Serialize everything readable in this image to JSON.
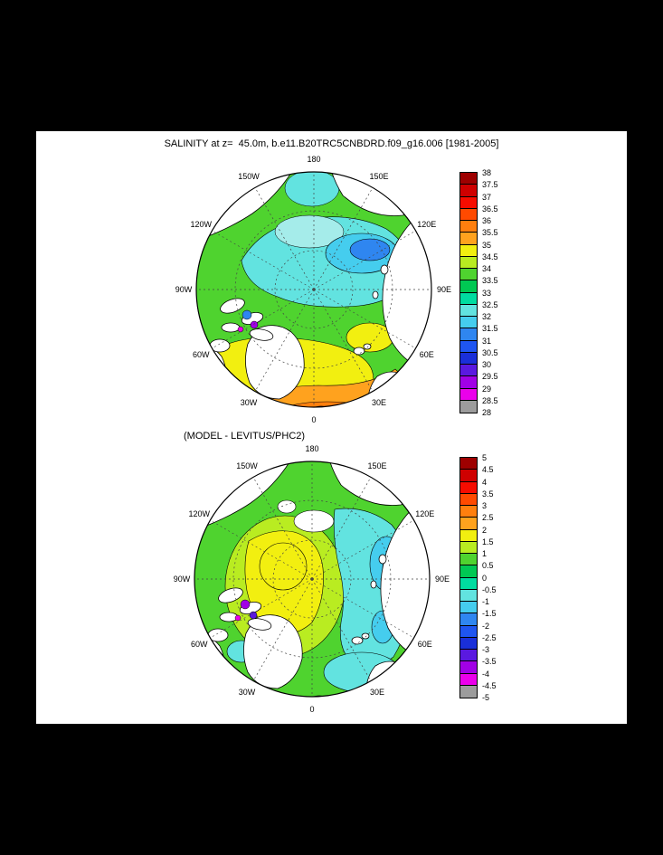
{
  "page": {
    "background": "#000000",
    "panel_background": "#ffffff"
  },
  "title": "SALINITY at z=  45.0m, b.e11.B20TRC5CNBDRD.f09_g16.006 [1981-2005]",
  "subtitle2": "(MODEL - LEVITUS/PHC2)",
  "maps": {
    "lon_labels": [
      {
        "label": "180",
        "angle": 0
      },
      {
        "label": "150E",
        "angle": 30
      },
      {
        "label": "120E",
        "angle": 60
      },
      {
        "label": "90E",
        "angle": 90
      },
      {
        "label": "60E",
        "angle": 120
      },
      {
        "label": "30E",
        "angle": 150
      },
      {
        "label": "0",
        "angle": 180
      },
      {
        "label": "30W",
        "angle": 210
      },
      {
        "label": "60W",
        "angle": 240
      },
      {
        "label": "90W",
        "angle": 270
      },
      {
        "label": "120W",
        "angle": 300
      },
      {
        "label": "150W",
        "angle": 330
      }
    ]
  },
  "colorbar": {
    "colors": [
      "#9e0000",
      "#cf0000",
      "#f60c00",
      "#ff4a00",
      "#ff7f0e",
      "#ffa21e",
      "#f2ef10",
      "#b9ec21",
      "#4fd32f",
      "#00c853",
      "#00dca0",
      "#62e3e0",
      "#45cdee",
      "#2f86f0",
      "#1f55f0",
      "#1a2fd9",
      "#5a19e0",
      "#a100e6",
      "#eb00eb",
      "#9c9c9c"
    ]
  },
  "colorbar1": {
    "labels": [
      "38",
      "37.5",
      "37",
      "36.5",
      "36",
      "35.5",
      "35",
      "34.5",
      "34",
      "33.5",
      "33",
      "32.5",
      "32",
      "31.5",
      "31",
      "30.5",
      "30",
      "29.5",
      "29",
      "28.5",
      "28"
    ]
  },
  "colorbar2": {
    "labels": [
      "5",
      "4.5",
      "4",
      "3.5",
      "3",
      "2.5",
      "2",
      "1.5",
      "1",
      "0.5",
      "0",
      "-0.5",
      "-1",
      "-1.5",
      "-2",
      "-2.5",
      "-3",
      "-3.5",
      "-4",
      "-4.5",
      "-5"
    ]
  },
  "chart_data": [
    {
      "type": "heatmap",
      "subtype": "filled-contour polar stereographic map",
      "title": "SALINITY at z=  45.0m, b.e11.B20TRC5CNBDRD.f09_g16.006 [1981-2005]",
      "variable": "sea-water salinity at 45.0 m depth (psu)",
      "region": "Arctic Ocean, north polar stereographic view",
      "period": "1981-2005",
      "lon_ticks": [
        "180",
        "150W",
        "150E",
        "120W",
        "120E",
        "90W",
        "90E",
        "60W",
        "60E",
        "30W",
        "30E",
        "0"
      ],
      "contour_levels": [
        28,
        28.5,
        29,
        29.5,
        30,
        30.5,
        31,
        31.5,
        32,
        32.5,
        33,
        33.5,
        34,
        34.5,
        35,
        35.5,
        36,
        36.5,
        37,
        37.5,
        38
      ],
      "palette_top_to_bottom": [
        "#9e0000",
        "#cf0000",
        "#f60c00",
        "#ff4a00",
        "#ff7f0e",
        "#ffa21e",
        "#f2ef10",
        "#b9ec21",
        "#4fd32f",
        "#00c853",
        "#00dca0",
        "#62e3e0",
        "#45cdee",
        "#2f86f0",
        "#1f55f0",
        "#1a2fd9",
        "#5a19e0",
        "#a100e6",
        "#eb00eb",
        "#9c9c9c"
      ],
      "legend_position": "right vertical colorbar",
      "pattern_notes": "Fresh water 31-32.5 (cyan/blue) over the central Arctic and Canada Basin; 33-34 (green) over Eurasian shelf seas; saline 34.5-36 (yellow to orange) in the North Atlantic, Nordic and Barents seas at the bottom of the map; very fresh spots (<30, purple/magenta) in Canadian Archipelago channels."
    },
    {
      "type": "heatmap",
      "subtype": "filled-contour polar stereographic map",
      "title": "(MODEL - LEVITUS/PHC2)",
      "variable": "salinity difference, model minus LEVITUS/PHC2 climatology (psu)",
      "region": "Arctic Ocean, north polar stereographic view",
      "lon_ticks": [
        "180",
        "150W",
        "150E",
        "120W",
        "120E",
        "90W",
        "90E",
        "60W",
        "60E",
        "30W",
        "30E",
        "0"
      ],
      "contour_levels": [
        -5,
        -4.5,
        -4,
        -3.5,
        -3,
        -2.5,
        -2,
        -1.5,
        -1,
        -0.5,
        0,
        0.5,
        1,
        1.5,
        2,
        2.5,
        3,
        3.5,
        4,
        4.5,
        5
      ],
      "palette_top_to_bottom": [
        "#9e0000",
        "#cf0000",
        "#f60c00",
        "#ff4a00",
        "#ff7f0e",
        "#ffa21e",
        "#f2ef10",
        "#b9ec21",
        "#4fd32f",
        "#00c853",
        "#00dca0",
        "#62e3e0",
        "#45cdee",
        "#2f86f0",
        "#1f55f0",
        "#1a2fd9",
        "#5a19e0",
        "#a100e6",
        "#eb00eb",
        "#9c9c9c"
      ],
      "legend_position": "right vertical colorbar",
      "pattern_notes": "Positive bias +1 to +2 (yellow) over the Beaufort Gyre / Canada Basin; near zero to +0.5 (green) over most of the basin; negative -0.5 to -2 (cyan/blue) along the Siberian shelves, Kara and Laptev seas; isolated large +/- spots in the Canadian Archipelago."
    }
  ]
}
